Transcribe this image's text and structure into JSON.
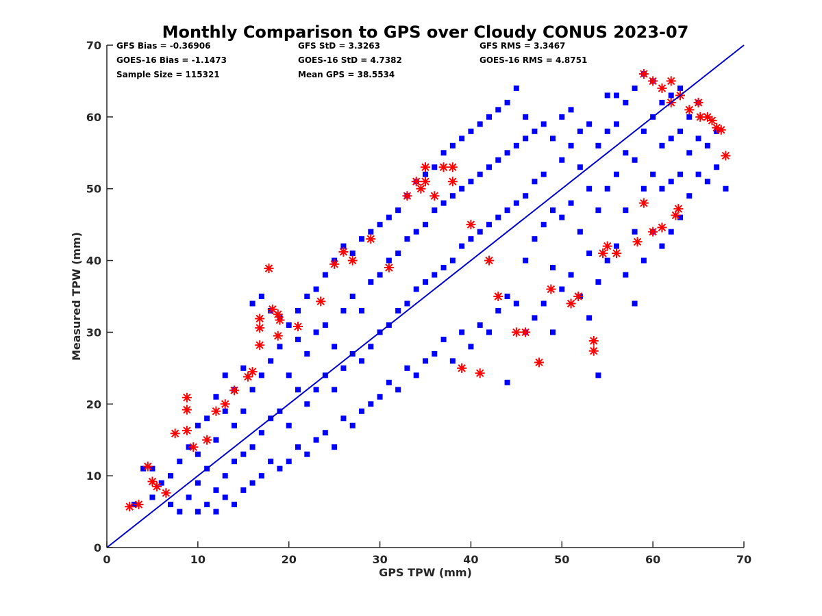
{
  "chart_data": {
    "type": "scatter",
    "title": "Monthly Comparison to GPS over Cloudy CONUS 2023-07",
    "xlabel": "GPS TPW (mm)",
    "ylabel": "Measured TPW (mm)",
    "xlim": [
      0,
      70
    ],
    "ylim": [
      0,
      70
    ],
    "xticks": [
      "0",
      "10",
      "20",
      "30",
      "40",
      "50",
      "60",
      "70"
    ],
    "yticks": [
      "0",
      "10",
      "20",
      "30",
      "40",
      "50",
      "60",
      "70"
    ],
    "grid": false,
    "legend": "none",
    "stats": [
      [
        "GFS Bias = -0.36906",
        "GFS StD = 3.3263",
        "GFS RMS = 3.3467"
      ],
      [
        "GOES-16 Bias = -1.1473",
        "GOES-16 StD = 4.7382",
        "GOES-16 RMS = 4.8751"
      ],
      [
        "Sample Size = 115321",
        "Mean GPS = 38.5534",
        ""
      ]
    ],
    "reference_line": {
      "x": [
        0,
        70
      ],
      "y": [
        0,
        70
      ],
      "color": "#0000cc"
    },
    "series": [
      {
        "marker": "square",
        "color": "#0000ff",
        "points": [
          [
            3,
            6
          ],
          [
            4,
            11
          ],
          [
            5,
            7
          ],
          [
            5,
            11
          ],
          [
            6,
            9
          ],
          [
            7,
            6
          ],
          [
            7,
            10
          ],
          [
            8,
            5
          ],
          [
            8,
            12
          ],
          [
            9,
            7
          ],
          [
            9,
            14
          ],
          [
            10,
            5
          ],
          [
            10,
            9
          ],
          [
            10,
            13
          ],
          [
            10,
            17
          ],
          [
            11,
            6
          ],
          [
            11,
            11
          ],
          [
            11,
            18
          ],
          [
            12,
            5
          ],
          [
            12,
            8
          ],
          [
            12,
            15
          ],
          [
            12,
            21
          ],
          [
            13,
            7
          ],
          [
            13,
            10
          ],
          [
            13,
            19
          ],
          [
            13,
            24
          ],
          [
            14,
            6
          ],
          [
            14,
            12
          ],
          [
            14,
            17
          ],
          [
            14,
            22
          ],
          [
            15,
            8
          ],
          [
            15,
            13
          ],
          [
            15,
            19
          ],
          [
            15,
            25
          ],
          [
            16,
            9
          ],
          [
            16,
            14
          ],
          [
            16,
            22
          ],
          [
            16,
            34
          ],
          [
            17,
            10
          ],
          [
            17,
            16
          ],
          [
            17,
            24
          ],
          [
            17,
            35
          ],
          [
            18,
            12
          ],
          [
            18,
            18
          ],
          [
            18,
            26
          ],
          [
            18,
            33
          ],
          [
            19,
            11
          ],
          [
            19,
            19
          ],
          [
            19,
            28
          ],
          [
            19,
            32
          ],
          [
            20,
            12
          ],
          [
            20,
            17
          ],
          [
            20,
            24
          ],
          [
            20,
            31
          ],
          [
            21,
            14
          ],
          [
            21,
            22
          ],
          [
            21,
            29
          ],
          [
            21,
            33
          ],
          [
            22,
            13
          ],
          [
            22,
            20
          ],
          [
            22,
            27
          ],
          [
            22,
            35
          ],
          [
            23,
            15
          ],
          [
            23,
            22
          ],
          [
            23,
            30
          ],
          [
            23,
            36
          ],
          [
            24,
            16
          ],
          [
            24,
            24
          ],
          [
            24,
            31
          ],
          [
            24,
            38
          ],
          [
            25,
            14
          ],
          [
            25,
            22
          ],
          [
            25,
            28
          ],
          [
            25,
            40
          ],
          [
            26,
            18
          ],
          [
            26,
            25
          ],
          [
            26,
            33
          ],
          [
            26,
            42
          ],
          [
            27,
            17
          ],
          [
            27,
            27
          ],
          [
            27,
            35
          ],
          [
            27,
            41
          ],
          [
            28,
            19
          ],
          [
            28,
            26
          ],
          [
            28,
            33
          ],
          [
            28,
            43
          ],
          [
            29,
            20
          ],
          [
            29,
            28
          ],
          [
            29,
            37
          ],
          [
            29,
            44
          ],
          [
            30,
            21
          ],
          [
            30,
            30
          ],
          [
            30,
            38
          ],
          [
            30,
            45
          ],
          [
            31,
            23
          ],
          [
            31,
            31
          ],
          [
            31,
            40
          ],
          [
            31,
            46
          ],
          [
            32,
            22
          ],
          [
            32,
            33
          ],
          [
            32,
            41
          ],
          [
            32,
            47
          ],
          [
            33,
            25
          ],
          [
            33,
            34
          ],
          [
            33,
            43
          ],
          [
            33,
            49
          ],
          [
            34,
            24
          ],
          [
            34,
            36
          ],
          [
            34,
            44
          ],
          [
            34,
            51
          ],
          [
            35,
            26
          ],
          [
            35,
            37
          ],
          [
            35,
            45
          ],
          [
            35,
            52
          ],
          [
            36,
            27
          ],
          [
            36,
            38
          ],
          [
            36,
            47
          ],
          [
            36,
            53
          ],
          [
            37,
            29
          ],
          [
            37,
            39
          ],
          [
            37,
            48
          ],
          [
            37,
            55
          ],
          [
            38,
            26
          ],
          [
            38,
            40
          ],
          [
            38,
            49
          ],
          [
            38,
            56
          ],
          [
            39,
            30
          ],
          [
            39,
            42
          ],
          [
            39,
            50
          ],
          [
            39,
            57
          ],
          [
            40,
            28
          ],
          [
            40,
            43
          ],
          [
            40,
            51
          ],
          [
            40,
            58
          ],
          [
            41,
            31
          ],
          [
            41,
            44
          ],
          [
            41,
            52
          ],
          [
            41,
            59
          ],
          [
            42,
            30
          ],
          [
            42,
            45
          ],
          [
            42,
            53
          ],
          [
            42,
            60
          ],
          [
            43,
            33
          ],
          [
            43,
            46
          ],
          [
            43,
            54
          ],
          [
            43,
            61
          ],
          [
            44,
            23
          ],
          [
            44,
            35
          ],
          [
            44,
            47
          ],
          [
            44,
            55
          ],
          [
            44,
            62
          ],
          [
            45,
            34
          ],
          [
            45,
            48
          ],
          [
            45,
            56
          ],
          [
            45,
            64
          ],
          [
            46,
            30
          ],
          [
            46,
            40
          ],
          [
            46,
            49
          ],
          [
            46,
            57
          ],
          [
            46,
            60
          ],
          [
            47,
            32
          ],
          [
            47,
            43
          ],
          [
            47,
            51
          ],
          [
            47,
            58
          ],
          [
            48,
            34
          ],
          [
            48,
            45
          ],
          [
            48,
            52
          ],
          [
            48,
            59
          ],
          [
            49,
            30
          ],
          [
            49,
            39
          ],
          [
            49,
            47
          ],
          [
            49,
            57
          ],
          [
            50,
            36
          ],
          [
            50,
            46
          ],
          [
            50,
            54
          ],
          [
            50,
            60
          ],
          [
            51,
            38
          ],
          [
            51,
            48
          ],
          [
            51,
            56
          ],
          [
            51,
            61
          ],
          [
            52,
            35
          ],
          [
            52,
            44
          ],
          [
            52,
            53
          ],
          [
            52,
            58
          ],
          [
            53,
            32
          ],
          [
            53,
            41
          ],
          [
            53,
            50
          ],
          [
            53,
            59
          ],
          [
            54,
            24
          ],
          [
            54,
            37
          ],
          [
            54,
            47
          ],
          [
            54,
            56
          ],
          [
            55,
            40
          ],
          [
            55,
            50
          ],
          [
            55,
            58
          ],
          [
            55,
            63
          ],
          [
            56,
            42
          ],
          [
            56,
            52
          ],
          [
            56,
            59
          ],
          [
            56,
            63
          ],
          [
            57,
            38
          ],
          [
            57,
            47
          ],
          [
            57,
            55
          ],
          [
            57,
            62
          ],
          [
            58,
            34
          ],
          [
            58,
            44
          ],
          [
            58,
            54
          ],
          [
            58,
            64
          ],
          [
            59,
            40
          ],
          [
            59,
            50
          ],
          [
            59,
            58
          ],
          [
            59,
            66
          ],
          [
            60,
            44
          ],
          [
            60,
            52
          ],
          [
            60,
            60
          ],
          [
            60,
            65
          ],
          [
            61,
            42
          ],
          [
            61,
            50
          ],
          [
            61,
            56
          ],
          [
            61,
            62
          ],
          [
            62,
            44
          ],
          [
            62,
            51
          ],
          [
            62,
            57
          ],
          [
            62,
            63
          ],
          [
            63,
            46
          ],
          [
            63,
            52
          ],
          [
            63,
            58
          ],
          [
            63,
            64
          ],
          [
            64,
            49
          ],
          [
            64,
            55
          ],
          [
            64,
            60
          ],
          [
            65,
            52
          ],
          [
            65,
            57
          ],
          [
            65,
            62
          ],
          [
            66,
            51
          ],
          [
            66,
            56
          ],
          [
            67,
            53
          ],
          [
            67,
            58
          ],
          [
            68,
            50
          ]
        ]
      },
      {
        "marker": "asterisk",
        "color": "#ff0000",
        "points": [
          [
            2.5,
            5.7
          ],
          [
            3.5,
            6
          ],
          [
            4.5,
            11.3
          ],
          [
            5,
            9.2
          ],
          [
            5.5,
            8.5
          ],
          [
            6.5,
            7.6
          ],
          [
            7.5,
            15.9
          ],
          [
            8.8,
            16.3
          ],
          [
            8.8,
            19.2
          ],
          [
            8.8,
            20.9
          ],
          [
            9.5,
            14
          ],
          [
            11,
            15
          ],
          [
            12,
            19
          ],
          [
            13,
            20
          ],
          [
            14,
            21.9
          ],
          [
            15.5,
            23.8
          ],
          [
            16,
            24.5
          ],
          [
            16.8,
            28.2
          ],
          [
            16.8,
            30.6
          ],
          [
            16.8,
            31.9
          ],
          [
            17.8,
            38.9
          ],
          [
            18.2,
            33.2
          ],
          [
            18.8,
            29.5
          ],
          [
            18.8,
            32.5
          ],
          [
            19,
            31.7
          ],
          [
            21,
            30.8
          ],
          [
            23.5,
            34.3
          ],
          [
            25,
            39.5
          ],
          [
            26,
            41.2
          ],
          [
            27,
            40
          ],
          [
            29,
            43
          ],
          [
            31,
            39
          ],
          [
            33,
            49
          ],
          [
            34,
            51
          ],
          [
            34.5,
            50
          ],
          [
            35,
            53
          ],
          [
            35,
            51
          ],
          [
            36,
            49
          ],
          [
            37,
            53
          ],
          [
            38,
            51
          ],
          [
            38,
            53
          ],
          [
            39,
            25
          ],
          [
            40,
            45
          ],
          [
            41,
            24.3
          ],
          [
            42,
            40
          ],
          [
            43,
            35
          ],
          [
            45,
            30
          ],
          [
            46,
            30
          ],
          [
            47.5,
            25.8
          ],
          [
            48.8,
            36
          ],
          [
            51,
            34
          ],
          [
            51.8,
            35
          ],
          [
            53.5,
            28.8
          ],
          [
            53.5,
            27.4
          ],
          [
            54.5,
            41
          ],
          [
            55,
            42
          ],
          [
            56,
            41
          ],
          [
            58.3,
            42.6
          ],
          [
            59,
            48
          ],
          [
            60,
            44
          ],
          [
            61,
            44.6
          ],
          [
            62,
            62
          ],
          [
            62.5,
            46.3
          ],
          [
            62.8,
            47.2
          ],
          [
            63,
            63
          ],
          [
            64,
            61
          ],
          [
            65,
            62
          ],
          [
            65.2,
            60
          ],
          [
            66,
            60
          ],
          [
            66.5,
            59.5
          ],
          [
            67,
            58.5
          ],
          [
            67.5,
            58.2
          ],
          [
            68,
            54.6
          ],
          [
            59,
            66
          ],
          [
            60,
            65
          ],
          [
            61,
            64
          ],
          [
            62,
            65
          ]
        ]
      }
    ]
  }
}
